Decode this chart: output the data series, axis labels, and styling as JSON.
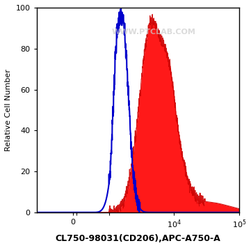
{
  "title": "",
  "xlabel": "CL750-98031(CD206),APC-A750-A",
  "ylabel": "Relative Cell Number",
  "ylim": [
    0,
    100
  ],
  "watermark": "WWW.PTCLAB.COM",
  "bg_color": "#ffffff",
  "plot_bg_color": "#ffffff",
  "blue_line_color": "#0000cc",
  "red_fill_color": "#ff0000",
  "red_line_color": "#cc0000",
  "xlabel_fontsize": 9,
  "ylabel_fontsize": 8,
  "tick_fontsize": 8
}
